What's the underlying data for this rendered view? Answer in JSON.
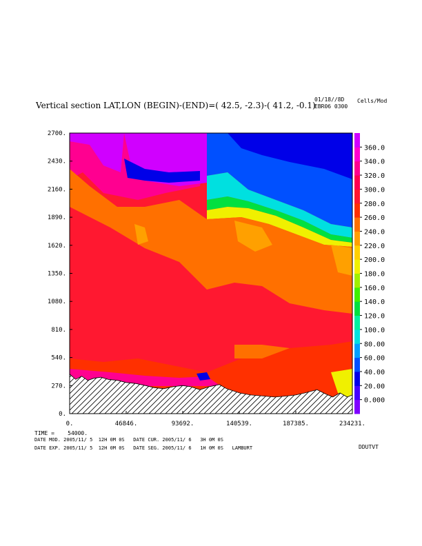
{
  "header": {
    "title": "Vertical section LAT,LON (BEGIN)-(END)=( 42.5, -2.3)-( 41.2, -0.1)",
    "stamp_line1": "01/18//8D",
    "stamp_line2": "EBR06 0300",
    "units": "Cells/Mod"
  },
  "footer": {
    "time": "TIME =    54000.",
    "date_mod": "DATE MOD. 2005/11/ 5  12H 0M 0S   DATE CUR. 2005/11/ 6   3H 0M 0S",
    "date_exp": "DATE EXP. 2005/11/ 5  12H 0M 0S   DATE SEG. 2005/11/ 6   1H 0M 0S   LAMBURT",
    "tag": "DDUTVT"
  },
  "chart_data": {
    "type": "heatmap",
    "title": "Vertical section LAT,LON (BEGIN)-(END)=( 42.5, -2.3)-( 41.2, -0.1)",
    "xlabel": "",
    "ylabel": "",
    "x_ticks": [
      "0.",
      "46846.",
      "93692.",
      "140539.",
      "187385.",
      "234231."
    ],
    "y_ticks": [
      "0.",
      "270.",
      "540.",
      "810.",
      "1080.",
      "1350.",
      "1620.",
      "1890.",
      "2160.",
      "2430.",
      "2700."
    ],
    "xlim": [
      0,
      234231
    ],
    "ylim": [
      0,
      2700
    ],
    "colorbar": {
      "labels": [
        "0.000",
        "20.00",
        "40.00",
        "60.00",
        "80.00",
        "100.0",
        "120.0",
        "140.0",
        "160.0",
        "180.0",
        "200.0",
        "220.0",
        "240.0",
        "260.0",
        "280.0",
        "300.0",
        "320.0",
        "340.0",
        "360.0"
      ],
      "colors": [
        "#7f00ff",
        "#4400ff",
        "#0000e8",
        "#0050ff",
        "#00a0ff",
        "#00e0e0",
        "#00f0a0",
        "#00e040",
        "#40f000",
        "#a0f000",
        "#f0f000",
        "#ffd000",
        "#ffa000",
        "#ff7000",
        "#ff3000",
        "#ff1830",
        "#ff0050",
        "#ff0090",
        "#ff00d0",
        "#d000ff"
      ]
    },
    "field_levels": [
      {
        "name": "base",
        "value": 320,
        "color": "#ff1830"
      },
      {
        "name": "lower-red",
        "value": 300,
        "color": "#ff3000"
      },
      {
        "name": "orange",
        "value": 260,
        "color": "#ff7000"
      },
      {
        "name": "light-orange",
        "value": 240,
        "color": "#ffa000"
      },
      {
        "name": "upper-magenta",
        "value": 340,
        "color": "#ff0090"
      },
      {
        "name": "top-purple",
        "value": 360,
        "color": "#d000ff"
      },
      {
        "name": "upper-blue",
        "value": 60,
        "color": "#0050ff"
      },
      {
        "name": "deep-blue",
        "value": 40,
        "color": "#0000e8"
      },
      {
        "name": "cyan",
        "value": 100,
        "color": "#00e0e0"
      },
      {
        "name": "green",
        "value": 140,
        "color": "#00e040"
      },
      {
        "name": "yellow",
        "value": 200,
        "color": "#f0f000"
      }
    ],
    "terrain_profile": [
      [
        0,
        380
      ],
      [
        5000,
        330
      ],
      [
        10000,
        360
      ],
      [
        15000,
        320
      ],
      [
        20000,
        340
      ],
      [
        26000,
        350
      ],
      [
        32000,
        330
      ],
      [
        40000,
        320
      ],
      [
        46846,
        300
      ],
      [
        55000,
        290
      ],
      [
        63000,
        270
      ],
      [
        70000,
        250
      ],
      [
        78000,
        240
      ],
      [
        86000,
        260
      ],
      [
        93692,
        270
      ],
      [
        100000,
        260
      ],
      [
        108000,
        230
      ],
      [
        116000,
        260
      ],
      [
        124000,
        280
      ],
      [
        130000,
        240
      ],
      [
        140539,
        200
      ],
      [
        150000,
        180
      ],
      [
        160000,
        170
      ],
      [
        170000,
        160
      ],
      [
        180000,
        170
      ],
      [
        187385,
        180
      ],
      [
        195000,
        200
      ],
      [
        205000,
        230
      ],
      [
        212000,
        190
      ],
      [
        218000,
        160
      ],
      [
        224000,
        200
      ],
      [
        230000,
        160
      ],
      [
        234231,
        180
      ]
    ]
  }
}
